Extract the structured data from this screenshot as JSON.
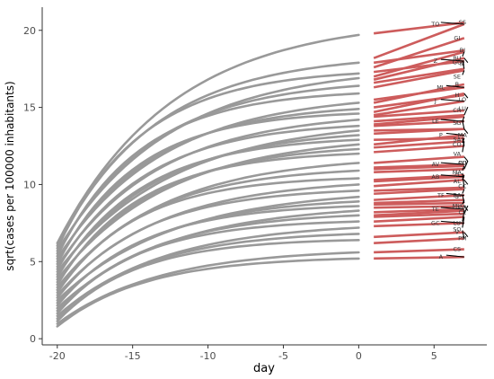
{
  "chart_data": {
    "type": "line",
    "xlabel": "day",
    "ylabel": "sqrt(cases per 100000 inhabitants)",
    "xlim": [
      -21,
      8.5
    ],
    "ylim": [
      -0.4,
      21.5
    ],
    "x_ticks": [
      -20,
      -15,
      -10,
      -5,
      0,
      5
    ],
    "y_ticks": [
      0,
      5,
      10,
      15,
      20
    ],
    "grid": false,
    "legend": "none",
    "colors": {
      "observed": "#999999",
      "projected": "#cd5c5c",
      "leader": "#000000"
    },
    "observed_end_values": [
      19.7,
      17.9,
      17.2,
      16.9,
      16.4,
      15.9,
      15.3,
      14.9,
      14.6,
      14.2,
      13.8,
      13.5,
      13.2,
      12.9,
      12.6,
      12.3,
      12.0,
      11.4,
      10.9,
      10.4,
      10.0,
      9.6,
      9.2,
      8.9,
      8.6,
      8.3,
      8.0,
      7.6,
      7.2,
      6.8,
      6.4,
      5.6,
      5.2
    ],
    "projections": [
      {
        "label": "SS",
        "start": 19.8,
        "end": 20.5
      },
      {
        "label": "TO",
        "start": 18.2,
        "end": 20.4
      },
      {
        "label": "GI",
        "start": 17.6,
        "end": 19.5
      },
      {
        "label": "BI",
        "start": 17.9,
        "end": 18.7
      },
      {
        "label": "BU",
        "start": 17.0,
        "end": 18.6
      },
      {
        "label": "Z",
        "start": 17.3,
        "end": 18.0
      },
      {
        "label": "M",
        "start": 16.8,
        "end": 18.2
      },
      {
        "label": "GU",
        "start": 16.6,
        "end": 17.5
      },
      {
        "label": "SE",
        "start": 16.3,
        "end": 17.4
      },
      {
        "label": "ML",
        "start": 15.5,
        "end": 16.3
      },
      {
        "label": "B",
        "start": 15.3,
        "end": 16.5
      },
      {
        "label": "H",
        "start": 15.0,
        "end": 15.8
      },
      {
        "label": "LO",
        "start": 14.7,
        "end": 15.9
      },
      {
        "label": "J",
        "start": 14.5,
        "end": 15.4
      },
      {
        "label": "CR",
        "start": 14.4,
        "end": 14.8
      },
      {
        "label": "LU",
        "start": 14.1,
        "end": 14.5
      },
      {
        "label": "SG",
        "start": 13.9,
        "end": 14.4
      },
      {
        "label": "LE",
        "start": 13.8,
        "end": 14.1
      },
      {
        "label": "MA",
        "start": 13.5,
        "end": 13.6
      },
      {
        "label": "T",
        "start": 13.3,
        "end": 13.6
      },
      {
        "label": "CO",
        "start": 12.9,
        "end": 13.0
      },
      {
        "label": "P",
        "start": 12.6,
        "end": 13.2
      },
      {
        "label": "VA",
        "start": 12.4,
        "end": 12.8
      },
      {
        "label": "SA",
        "start": 12.1,
        "end": 12.5
      },
      {
        "label": "CU",
        "start": 11.4,
        "end": 11.8
      },
      {
        "label": "AV",
        "start": 11.1,
        "end": 11.3
      },
      {
        "label": "MA",
        "start": 11.0,
        "end": 11.2
      },
      {
        "label": "PO",
        "start": 10.8,
        "end": 11.0
      },
      {
        "label": "AL",
        "start": 10.3,
        "end": 10.6
      },
      {
        "label": "AB",
        "start": 10.2,
        "end": 10.5
      },
      {
        "label": "CC",
        "start": 9.9,
        "end": 10.3
      },
      {
        "label": "O",
        "start": 9.6,
        "end": 9.8
      },
      {
        "label": "BA",
        "start": 9.4,
        "end": 9.7
      },
      {
        "label": "TF",
        "start": 9.0,
        "end": 9.3
      },
      {
        "label": "MU",
        "start": 8.8,
        "end": 9.0
      },
      {
        "label": "S",
        "start": 8.7,
        "end": 8.8
      },
      {
        "label": "CE",
        "start": 8.5,
        "end": 8.6
      },
      {
        "label": "TE",
        "start": 8.2,
        "end": 8.4
      },
      {
        "label": "LU",
        "start": 8.0,
        "end": 8.3
      },
      {
        "label": "OR",
        "start": 7.9,
        "end": 8.1
      },
      {
        "label": "SO",
        "start": 7.6,
        "end": 7.9
      },
      {
        "label": "GC",
        "start": 7.3,
        "end": 7.5
      },
      {
        "label": "PM",
        "start": 6.6,
        "end": 6.9
      },
      {
        "label": "V",
        "start": 6.2,
        "end": 6.5
      },
      {
        "label": "CS",
        "start": 5.6,
        "end": 5.8
      },
      {
        "label": "A",
        "start": 5.2,
        "end": 5.3
      }
    ]
  }
}
